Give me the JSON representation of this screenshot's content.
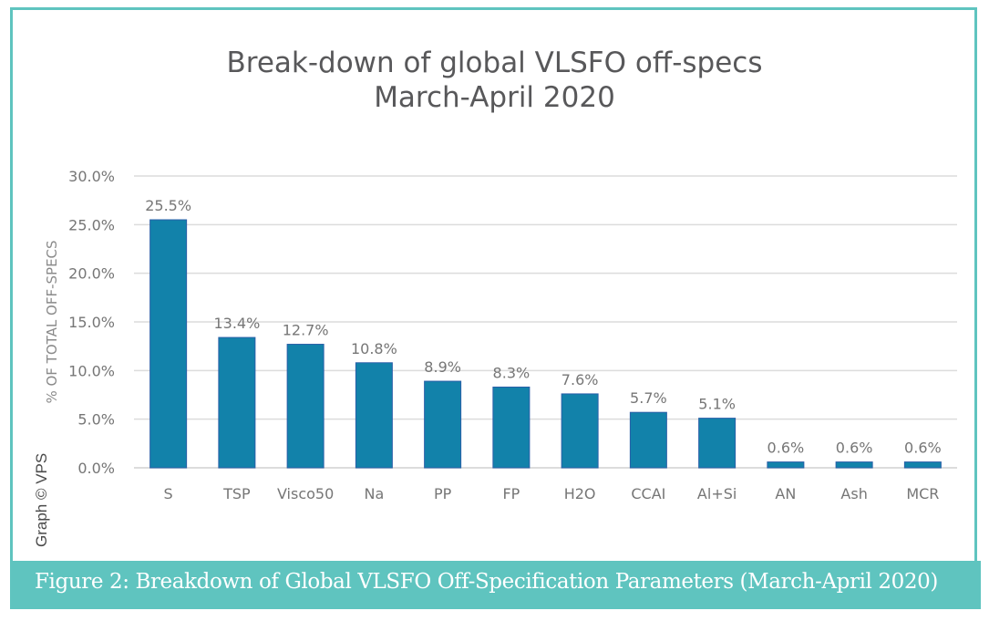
{
  "chart_data": {
    "type": "bar",
    "title": [
      "Break-down of global VLSFO off-specs",
      "March-April 2020"
    ],
    "xlabel": "",
    "ylabel": "% OF TOTAL OFF-SPECS",
    "ylim": [
      0,
      30
    ],
    "yticks": [
      0,
      5,
      10,
      15,
      20,
      25,
      30
    ],
    "ytick_labels": [
      "0.0%",
      "5.0%",
      "10.0%",
      "15.0%",
      "20.0%",
      "25.0%",
      "30.0%"
    ],
    "grid": true,
    "categories": [
      "S",
      "TSP",
      "Visco50",
      "Na",
      "PP",
      "FP",
      "H2O",
      "CCAI",
      "Al+Si",
      "AN",
      "Ash",
      "MCR"
    ],
    "values": [
      25.5,
      13.4,
      12.7,
      10.8,
      8.9,
      8.3,
      7.6,
      5.7,
      5.1,
      0.6,
      0.6,
      0.6
    ],
    "data_labels": [
      "25.5%",
      "13.4%",
      "12.7%",
      "10.8%",
      "8.9%",
      "8.3%",
      "7.6%",
      "5.7%",
      "5.1%",
      "0.6%",
      "0.6%",
      "0.6%"
    ],
    "bar_color": "#1282aa",
    "legend": "none"
  },
  "credit": "Graph © VPS",
  "caption": "Figure 2: Breakdown of Global VLSFO Off-Specification Parameters (March-April 2020)",
  "colors": {
    "frame": "#5fc4bf",
    "bar": "#1282aa",
    "gridline": "#dcdcdc",
    "text": "#767676"
  }
}
